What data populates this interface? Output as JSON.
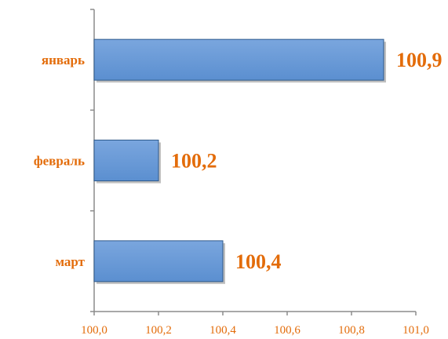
{
  "chart_data": {
    "type": "bar",
    "orientation": "horizontal",
    "categories": [
      "январь",
      "февраль",
      "март"
    ],
    "values": [
      100.9,
      100.2,
      100.4
    ],
    "value_labels": [
      "100,9",
      "100,2",
      "100,4"
    ],
    "xlim": [
      100.0,
      101.0
    ],
    "x_ticks": [
      100.0,
      100.2,
      100.4,
      100.6,
      100.8,
      101.0
    ],
    "x_tick_labels": [
      "100,0",
      "100,2",
      "100,4",
      "100,6",
      "100,8",
      "101,0"
    ],
    "title": "",
    "xlabel": "",
    "ylabel": "",
    "grid": false,
    "legend": "none",
    "colors": {
      "bar_fill": "#5b8fd0",
      "bar_fill_top": "#7aa6de",
      "bar_stroke": "#2f5a8c",
      "text": "#e36c0a",
      "axis": "#8c8c8c"
    }
  }
}
